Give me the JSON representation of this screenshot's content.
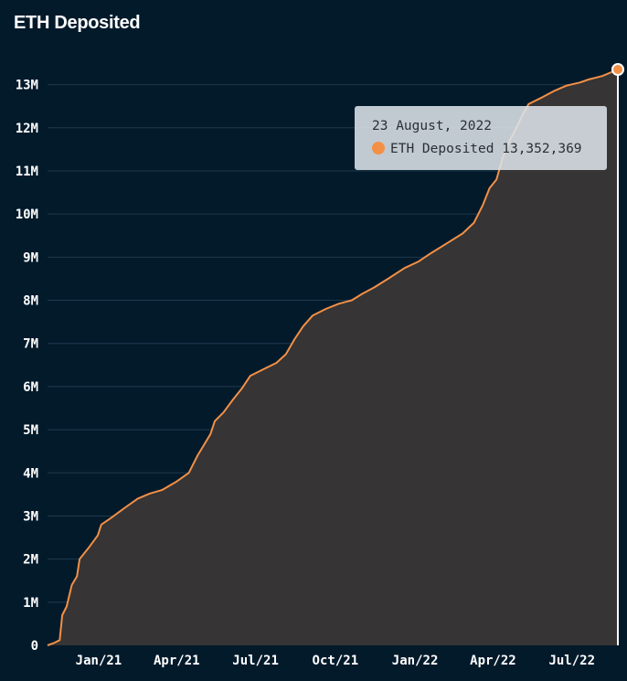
{
  "chart_data": {
    "type": "area",
    "title": "ETH Deposited",
    "series": [
      {
        "name": "ETH Deposited",
        "color": "#f39046",
        "points": [
          [
            "2020-11-03",
            0
          ],
          [
            "2020-11-10",
            50000
          ],
          [
            "2020-11-17",
            120000
          ],
          [
            "2020-11-20",
            700000
          ],
          [
            "2020-11-25",
            900000
          ],
          [
            "2020-12-01",
            1400000
          ],
          [
            "2020-12-07",
            1600000
          ],
          [
            "2020-12-10",
            2000000
          ],
          [
            "2020-12-20",
            2250000
          ],
          [
            "2020-12-31",
            2550000
          ],
          [
            "2021-01-04",
            2800000
          ],
          [
            "2021-01-15",
            2950000
          ],
          [
            "2021-02-01",
            3200000
          ],
          [
            "2021-02-15",
            3400000
          ],
          [
            "2021-03-01",
            3520000
          ],
          [
            "2021-03-15",
            3600000
          ],
          [
            "2021-04-01",
            3800000
          ],
          [
            "2021-04-15",
            4000000
          ],
          [
            "2021-04-25",
            4400000
          ],
          [
            "2021-05-01",
            4600000
          ],
          [
            "2021-05-10",
            4900000
          ],
          [
            "2021-05-15",
            5200000
          ],
          [
            "2021-05-25",
            5400000
          ],
          [
            "2021-06-05",
            5700000
          ],
          [
            "2021-06-15",
            5950000
          ],
          [
            "2021-06-25",
            6250000
          ],
          [
            "2021-07-10",
            6400000
          ],
          [
            "2021-07-25",
            6550000
          ],
          [
            "2021-08-05",
            6750000
          ],
          [
            "2021-08-15",
            7100000
          ],
          [
            "2021-08-25",
            7400000
          ],
          [
            "2021-09-05",
            7650000
          ],
          [
            "2021-09-20",
            7800000
          ],
          [
            "2021-10-05",
            7920000
          ],
          [
            "2021-10-20",
            8000000
          ],
          [
            "2021-11-01",
            8150000
          ],
          [
            "2021-11-15",
            8300000
          ],
          [
            "2021-12-01",
            8500000
          ],
          [
            "2021-12-20",
            8750000
          ],
          [
            "2022-01-05",
            8900000
          ],
          [
            "2022-01-20",
            9100000
          ],
          [
            "2022-02-05",
            9300000
          ],
          [
            "2022-02-25",
            9550000
          ],
          [
            "2022-03-10",
            9800000
          ],
          [
            "2022-03-20",
            10200000
          ],
          [
            "2022-03-28",
            10600000
          ],
          [
            "2022-04-05",
            10800000
          ],
          [
            "2022-04-12",
            11300000
          ],
          [
            "2022-04-20",
            11700000
          ],
          [
            "2022-04-28",
            12000000
          ],
          [
            "2022-05-05",
            12300000
          ],
          [
            "2022-05-12",
            12550000
          ],
          [
            "2022-05-25",
            12680000
          ],
          [
            "2022-06-10",
            12850000
          ],
          [
            "2022-06-25",
            12980000
          ],
          [
            "2022-07-10",
            13050000
          ],
          [
            "2022-07-20",
            13120000
          ],
          [
            "2022-08-05",
            13200000
          ],
          [
            "2022-08-23",
            13352369
          ]
        ]
      }
    ],
    "y_ticks": [
      {
        "value": 0,
        "label": "0"
      },
      {
        "value": 1000000,
        "label": "1M"
      },
      {
        "value": 2000000,
        "label": "2M"
      },
      {
        "value": 3000000,
        "label": "3M"
      },
      {
        "value": 4000000,
        "label": "4M"
      },
      {
        "value": 5000000,
        "label": "5M"
      },
      {
        "value": 6000000,
        "label": "6M"
      },
      {
        "value": 7000000,
        "label": "7M"
      },
      {
        "value": 8000000,
        "label": "8M"
      },
      {
        "value": 9000000,
        "label": "9M"
      },
      {
        "value": 10000000,
        "label": "10M"
      },
      {
        "value": 11000000,
        "label": "11M"
      },
      {
        "value": 12000000,
        "label": "12M"
      },
      {
        "value": 13000000,
        "label": "13M"
      }
    ],
    "x_ticks": [
      {
        "date": "2021-01-01",
        "label": "Jan/21"
      },
      {
        "date": "2021-04-01",
        "label": "Apr/21"
      },
      {
        "date": "2021-07-01",
        "label": "Jul/21"
      },
      {
        "date": "2021-10-01",
        "label": "Oct/21"
      },
      {
        "date": "2022-01-01",
        "label": "Jan/22"
      },
      {
        "date": "2022-04-01",
        "label": "Apr/22"
      },
      {
        "date": "2022-07-01",
        "label": "Jul/22"
      }
    ],
    "xlim": [
      "2020-11-03",
      "2022-08-23"
    ],
    "ylim": [
      0,
      13352369
    ],
    "grid": true,
    "colors": {
      "background": "#031a2b",
      "line": "#f39046",
      "area": "#363434",
      "grid": "#1d3a4c",
      "cursor": "#ffffff"
    }
  },
  "tooltip": {
    "date": "23 August, 2022",
    "series_name": "ETH Deposited",
    "value": "13,352,369"
  }
}
